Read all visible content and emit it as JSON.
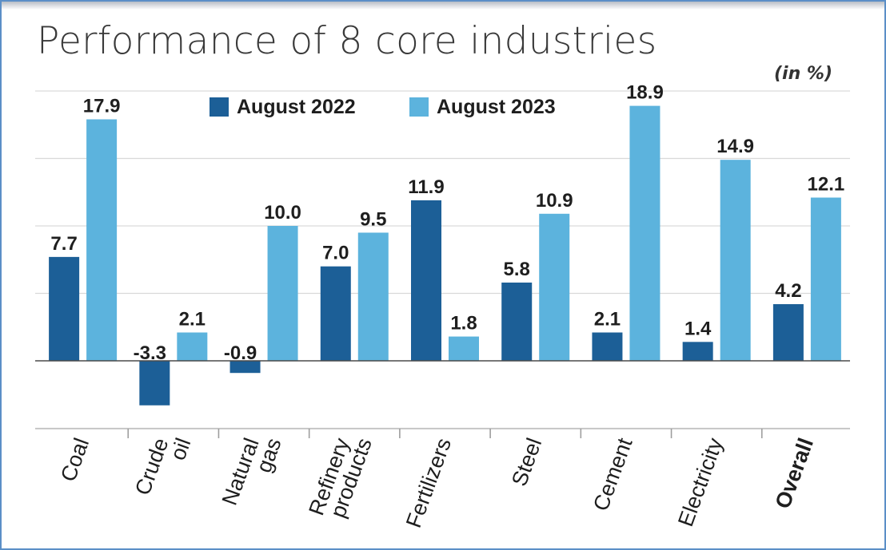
{
  "chart_data": {
    "type": "bar",
    "title": "Performance of 8 core industries",
    "unit": "(in %)",
    "categories": [
      [
        "Coal"
      ],
      [
        "Crude",
        "oil"
      ],
      [
        "Natural",
        "gas"
      ],
      [
        "Refinery",
        "products"
      ],
      [
        "Fertilizers"
      ],
      [
        "Steel"
      ],
      [
        "Cement"
      ],
      [
        "Electricity"
      ],
      [
        "Overall"
      ]
    ],
    "series": [
      {
        "name": "August 2022",
        "color": "#1c5f97",
        "values": [
          7.7,
          -3.3,
          -0.9,
          7.0,
          11.9,
          5.8,
          2.1,
          1.4,
          4.2
        ]
      },
      {
        "name": "August 2023",
        "color": "#5cb3dd",
        "values": [
          17.9,
          2.1,
          10.0,
          9.5,
          1.8,
          10.9,
          18.9,
          14.9,
          12.1
        ]
      }
    ],
    "value_labels": [
      [
        "7.7",
        "-3.3",
        "-0.9",
        "7.0",
        "11.9",
        "5.8",
        "2.1",
        "1.4",
        "4.2"
      ],
      [
        "17.9",
        "2.1",
        "10.0",
        "9.5",
        "1.8",
        "10.9",
        "18.9",
        "14.9",
        "12.1"
      ]
    ],
    "highlight_category": "Overall",
    "ylim": [
      -5,
      20
    ],
    "grid": true,
    "legend": "top-center"
  }
}
